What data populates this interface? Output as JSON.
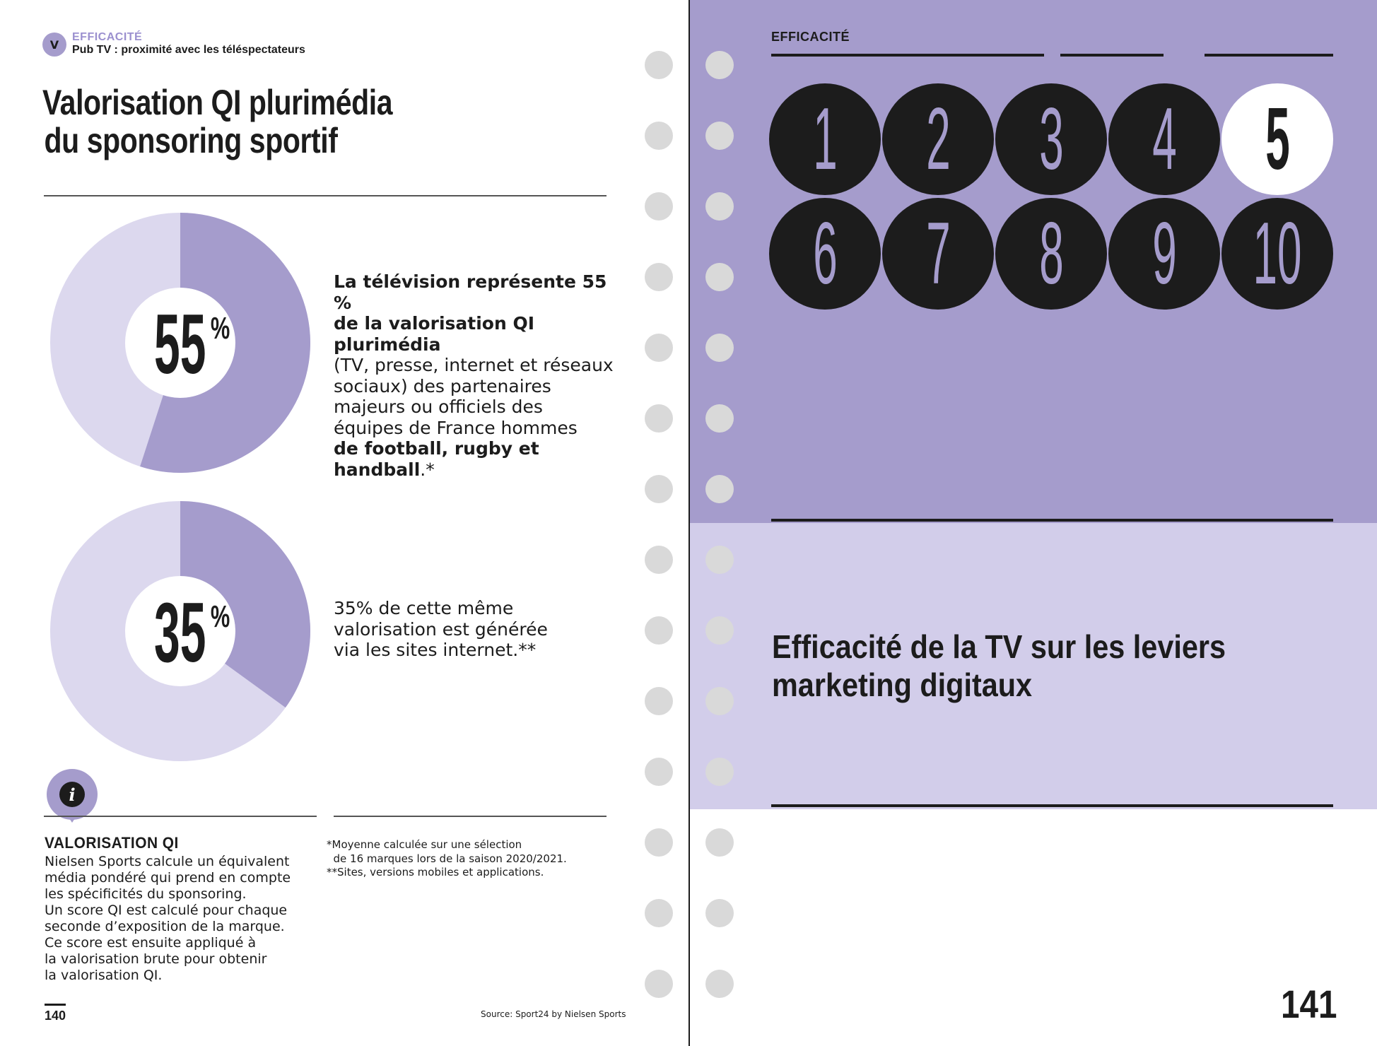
{
  "left_page": {
    "badge": "V",
    "section_label": "EFFICACITÉ",
    "section_subtitle": "Pub TV : proximité avec les téléspectateurs",
    "title_line1": "Valorisation QI plurimédia",
    "title_line2": "du sponsoring sportif",
    "stat1": {
      "value": 55,
      "number": "55",
      "unit": "%",
      "text_bold1": "La télévision représente 55 %",
      "text_bold2": "de la valorisation QI plurimédia",
      "text_line3": "(TV, presse, internet et réseaux",
      "text_line4": "sociaux) des partenaires",
      "text_line5": "majeurs ou officiels des",
      "text_line6": "équipes de France hommes",
      "text_bold3": "de football, rugby et handball",
      "text_suffix": ".*"
    },
    "stat2": {
      "value": 35,
      "number": "35",
      "unit": "%",
      "text_line1": "35% de cette même",
      "text_line2": "valorisation est générée",
      "text_line3": "via les sites internet.**"
    },
    "info": {
      "icon": "info-icon",
      "glyph": "i",
      "title": "VALORISATION QI",
      "lines": [
        "Nielsen Sports calcule un équivalent",
        "média pondéré qui prend en compte",
        "les spécificités du sponsoring.",
        "Un score QI est calculé pour chaque",
        "seconde d’exposition de la marque.",
        "Ce score est ensuite appliqué à",
        "la valorisation brute pour obtenir",
        "la valorisation QI."
      ]
    },
    "footnotes": [
      "*Moyenne calculée sur une sélection",
      "  de 16 marques lors de la saison 2020/2021.",
      "**Sites, versions mobiles et applications."
    ],
    "page_number": "140",
    "source": "Source: Sport24 by Nielsen Sports"
  },
  "right_page": {
    "section_label": "EFFICACITÉ",
    "numbers": [
      "1",
      "2",
      "3",
      "4",
      "5",
      "6",
      "7",
      "8",
      "9",
      "10"
    ],
    "active_number": "5",
    "title_line1": "Efficacité de la TV sur les leviers",
    "title_line2": "marketing digitaux",
    "page_number": "141"
  },
  "colors": {
    "accent": "#a59ccc",
    "accent_light": "#d2cdea",
    "donut_light": "#dcd8ee",
    "dark": "#1c1c1c",
    "hole": "#d9d9d9"
  }
}
